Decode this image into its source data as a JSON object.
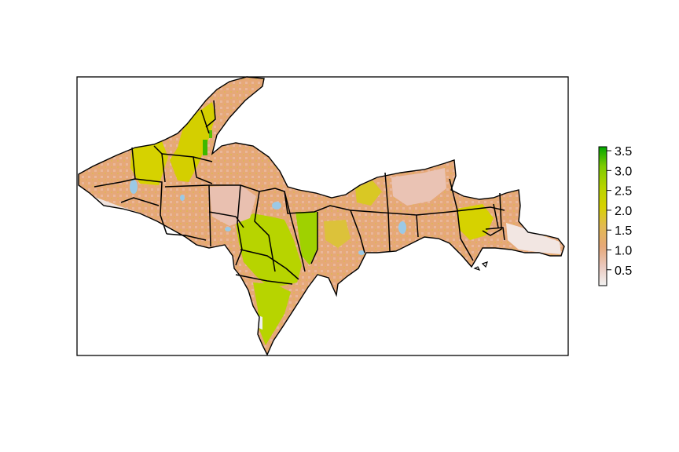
{
  "map": {
    "type": "raster-map",
    "region_shape": "Upper Peninsula of Michigan with county boundary lines",
    "legend": {
      "placement": "right",
      "min": 0.1,
      "max": 3.6,
      "ticks": [
        "0.5",
        "1.0",
        "1.5",
        "2.0",
        "2.5",
        "3.0",
        "3.5"
      ],
      "tick_values": [
        0.5,
        1.0,
        1.5,
        2.0,
        2.5,
        3.0,
        3.5
      ],
      "colors": [
        "#f2f2f2",
        "#eac8bd",
        "#e6a878",
        "#e2ba50",
        "#d6d200",
        "#b7d400",
        "#7ccb00",
        "#00a600"
      ]
    },
    "colors": {
      "water": "#9bc9e6",
      "border": "#000000",
      "frame": "#000000"
    }
  }
}
